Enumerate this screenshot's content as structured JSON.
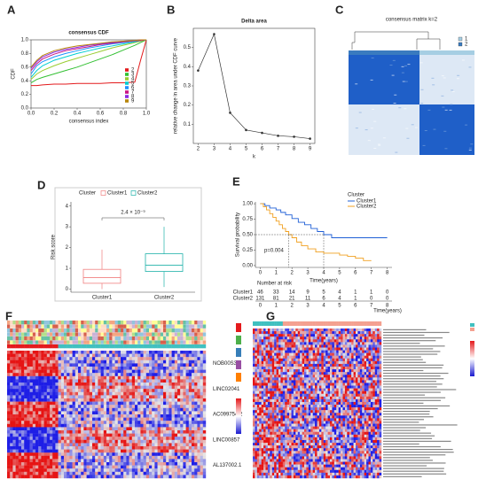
{
  "panel_labels": [
    "A",
    "B",
    "C",
    "D",
    "E",
    "F",
    "G"
  ],
  "chart_data": [
    {
      "type": "line",
      "title": "consensus CDF",
      "x_label": "consensus index",
      "y_label": "CDF",
      "x": [
        0,
        0.05,
        0.1,
        0.2,
        0.3,
        0.4,
        0.5,
        0.6,
        0.7,
        0.8,
        0.9,
        0.95,
        1
      ],
      "series": [
        {
          "name": "2",
          "color": "#e31a1c",
          "values": [
            0.33,
            0.33,
            0.34,
            0.35,
            0.35,
            0.36,
            0.36,
            0.36,
            0.37,
            0.37,
            0.38,
            0.7,
            1
          ]
        },
        {
          "name": "3",
          "color": "#33c033",
          "values": [
            0.37,
            0.42,
            0.45,
            0.5,
            0.55,
            0.6,
            0.66,
            0.72,
            0.78,
            0.85,
            0.92,
            0.96,
            1
          ]
        },
        {
          "name": "4",
          "color": "#9acd32",
          "values": [
            0.42,
            0.5,
            0.55,
            0.62,
            0.68,
            0.73,
            0.78,
            0.83,
            0.88,
            0.92,
            0.96,
            0.98,
            1
          ]
        },
        {
          "name": "5",
          "color": "#00ced1",
          "values": [
            0.45,
            0.55,
            0.62,
            0.7,
            0.75,
            0.8,
            0.84,
            0.88,
            0.91,
            0.94,
            0.97,
            0.99,
            1
          ]
        },
        {
          "name": "6",
          "color": "#1e90ff",
          "values": [
            0.5,
            0.62,
            0.68,
            0.75,
            0.8,
            0.84,
            0.88,
            0.91,
            0.94,
            0.96,
            0.98,
            0.99,
            1
          ]
        },
        {
          "name": "7",
          "color": "#c71585",
          "values": [
            0.55,
            0.65,
            0.72,
            0.79,
            0.84,
            0.87,
            0.9,
            0.93,
            0.95,
            0.97,
            0.985,
            0.99,
            1
          ]
        },
        {
          "name": "8",
          "color": "#8a2be2",
          "values": [
            0.58,
            0.68,
            0.75,
            0.82,
            0.86,
            0.89,
            0.92,
            0.94,
            0.96,
            0.98,
            0.99,
            1,
            1
          ]
        },
        {
          "name": "9",
          "color": "#b8860b",
          "values": [
            0.6,
            0.7,
            0.77,
            0.84,
            0.88,
            0.91,
            0.93,
            0.95,
            0.97,
            0.98,
            0.99,
            1,
            1
          ]
        }
      ],
      "xlim": [
        0,
        1
      ],
      "ylim": [
        0,
        1
      ],
      "xticks": [
        {
          "value": 0,
          "label": "0.0"
        },
        {
          "value": 0.2,
          "label": "0.2"
        },
        {
          "value": 0.4,
          "label": "0.4"
        },
        {
          "value": 0.6,
          "label": "0.6"
        },
        {
          "value": 0.8,
          "label": "0.8"
        },
        {
          "value": 1,
          "label": "1.0"
        }
      ],
      "yticks": [
        {
          "value": 0,
          "label": "0.0"
        },
        {
          "value": 0.2,
          "label": "0.2"
        },
        {
          "value": 0.4,
          "label": "0.4"
        },
        {
          "value": 0.6,
          "label": "0.6"
        },
        {
          "value": 0.8,
          "label": "0.8"
        },
        {
          "value": 1,
          "label": "1.0"
        }
      ],
      "legend": "bottom-right"
    },
    {
      "type": "points",
      "title": "Delta area",
      "x_label": "k",
      "y_label": "relative change in area under CDF curve",
      "x": [
        2,
        3,
        4,
        5,
        6,
        7,
        8,
        9
      ],
      "values": [
        0.38,
        0.57,
        0.16,
        0.07,
        0.055,
        0.04,
        0.035,
        0.025
      ],
      "color": "#333333",
      "xlim": [
        1.7,
        9.3
      ],
      "ylim": [
        0,
        0.6
      ],
      "xticks": [
        2,
        3,
        4,
        5,
        6,
        7,
        8,
        9
      ],
      "yticks": [
        0.1,
        0.2,
        0.3,
        0.4,
        0.5
      ]
    },
    {
      "type": "box",
      "y_label": "Risk score",
      "legend_title": "Cluster",
      "annotation": "2.4 × 10⁻⁹",
      "categories": [
        "Cluster1",
        "Cluster2"
      ],
      "boxes": [
        {
          "color": "#f08080",
          "min": 0,
          "q1": 0.28,
          "median": 0.55,
          "q3": 0.95,
          "max": 1.9
        },
        {
          "color": "#20b2aa",
          "min": 0.1,
          "q1": 0.85,
          "median": 1.15,
          "q3": 1.7,
          "max": 3
        }
      ],
      "ylim": [
        -0.15,
        4.2
      ],
      "yticks": [
        0,
        1,
        2,
        3,
        4
      ]
    },
    {
      "type": "survival",
      "y_label": "Survival probability",
      "x_label": "Time(years)",
      "legend_title": "Cluster",
      "annotation": "p=0.004",
      "series": [
        {
          "name": "Cluster1",
          "color": "#1f5fd6",
          "x": [
            0,
            0.3,
            0.6,
            1,
            1.3,
            1.6,
            2,
            2.4,
            2.8,
            3.2,
            3.6,
            4,
            4.5,
            8
          ],
          "values": [
            1,
            0.97,
            0.93,
            0.9,
            0.86,
            0.82,
            0.76,
            0.7,
            0.66,
            0.6,
            0.55,
            0.5,
            0.45,
            0.45
          ]
        },
        {
          "name": "Cluster2",
          "color": "#f0a020",
          "x": [
            0,
            0.2,
            0.4,
            0.6,
            0.8,
            1,
            1.2,
            1.4,
            1.6,
            1.8,
            2,
            2.3,
            2.6,
            3,
            3.5,
            4,
            5,
            5.5,
            6,
            6.5,
            7
          ],
          "values": [
            1,
            0.95,
            0.9,
            0.84,
            0.78,
            0.72,
            0.66,
            0.6,
            0.55,
            0.5,
            0.45,
            0.38,
            0.32,
            0.27,
            0.22,
            0.2,
            0.17,
            0.15,
            0.12,
            0.08,
            0.08
          ]
        }
      ],
      "xlim": [
        -0.3,
        8.3
      ],
      "ylim": [
        -0.03,
        1.03
      ],
      "xticks": [
        0,
        1,
        2,
        3,
        4,
        5,
        6,
        7,
        8
      ],
      "yticks": [
        {
          "value": 0,
          "label": "0.00"
        },
        {
          "value": 0.25,
          "label": "0.25"
        },
        {
          "value": 0.5,
          "label": "0.50"
        },
        {
          "value": 0.75,
          "label": "0.75"
        },
        {
          "value": 1,
          "label": "1.00"
        }
      ],
      "risk_table": {
        "title": "Number at risk",
        "rows": [
          [
            46,
            33,
            14,
            9,
            5,
            4,
            1,
            1,
            0
          ],
          [
            131,
            81,
            21,
            11,
            6,
            4,
            1,
            0,
            0
          ]
        ]
      }
    }
  ],
  "consensus_matrix": {
    "title": "consensus matrix k=2",
    "legend": [
      "1",
      "2"
    ]
  },
  "heatmap_f": {
    "genes": [
      "NOB00S3.1",
      "LINC02041",
      "AC099754.2",
      "LINC00857",
      "AL137002.1"
    ]
  }
}
